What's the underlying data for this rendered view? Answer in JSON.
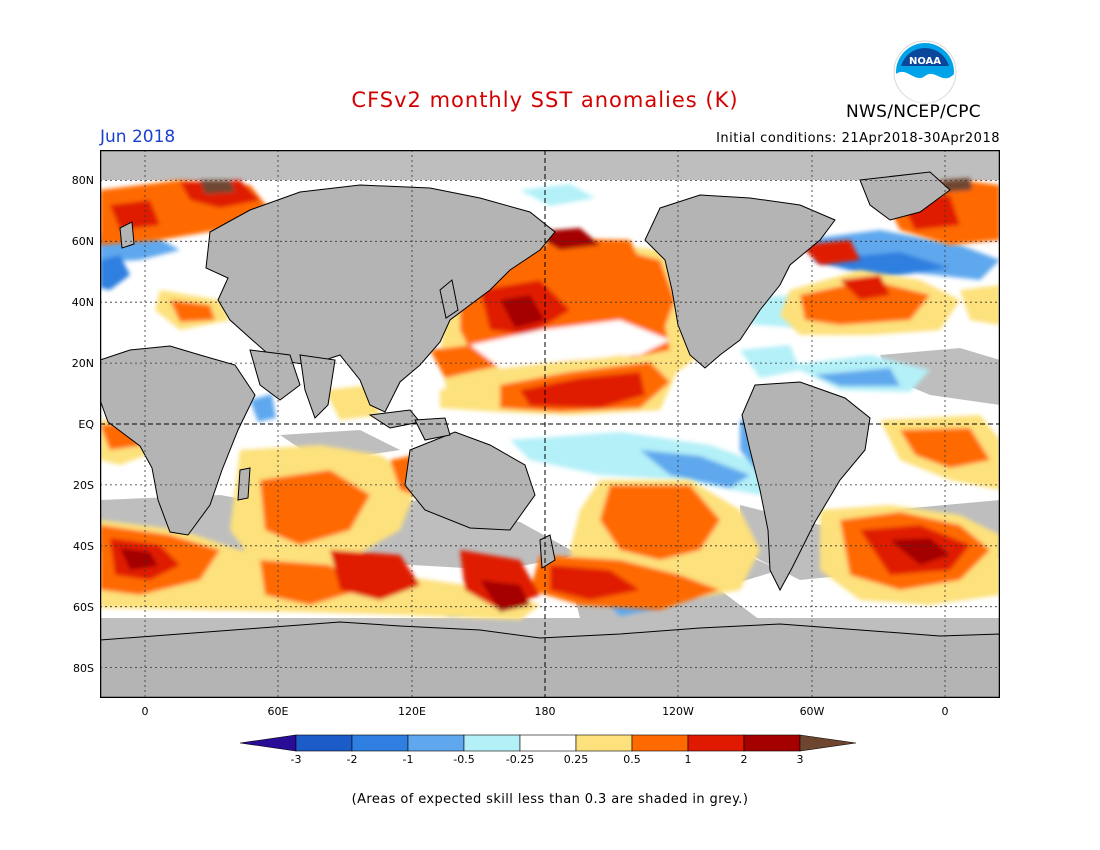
{
  "header": {
    "title": "CFSv2 monthly SST anomalies (K)",
    "month": "Jun 2018",
    "initial_conditions": "Initial conditions: 21Apr2018-30Apr2018",
    "agency": "NWS/NCEP/CPC",
    "logo_text": "NOAA"
  },
  "axes": {
    "lat_labels": [
      "80N",
      "60N",
      "40N",
      "20N",
      "EQ",
      "20S",
      "40S",
      "60S",
      "80S"
    ],
    "lon_labels": [
      "0",
      "60E",
      "120E",
      "180",
      "120W",
      "60W",
      "0"
    ]
  },
  "colorbar": {
    "labels": [
      "-3",
      "-2",
      "-1",
      "-0.5",
      "-0.25",
      "0.25",
      "0.5",
      "1",
      "2",
      "3"
    ],
    "colors": [
      "#2a0d96",
      "#1c5cc8",
      "#2f7fe0",
      "#5fa8ee",
      "#b4f0f8",
      "#ffffff",
      "#fde17c",
      "#ff6a00",
      "#e01a00",
      "#a40000",
      "#6e4630"
    ]
  },
  "footnote": "(Areas of expected skill less than 0.3 are shaded in grey.)",
  "colors": {
    "land": "#b4b4b4",
    "grey_skill": "#bebebe",
    "title": "#d40000",
    "month": "#1a3fd1"
  }
}
